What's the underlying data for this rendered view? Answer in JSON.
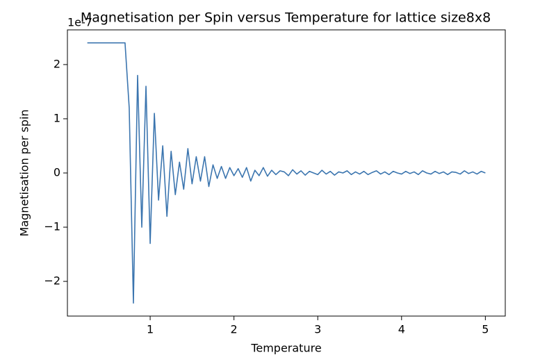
{
  "chart_data": {
    "type": "line",
    "title": "Magnetisation per Spin versus Temperature for lattice size8x8",
    "x_label": "Temperature",
    "y_label": "Magnetisation per spin",
    "y_offset_label": "1e-7",
    "x": [
      0.25,
      0.3,
      0.35,
      0.4,
      0.45,
      0.5,
      0.55,
      0.6,
      0.65,
      0.7,
      0.75,
      0.8,
      0.85,
      0.9,
      0.95,
      1.0,
      1.05,
      1.1,
      1.15,
      1.2,
      1.25,
      1.3,
      1.35,
      1.4,
      1.45,
      1.5,
      1.55,
      1.6,
      1.65,
      1.7,
      1.75,
      1.8,
      1.85,
      1.9,
      1.95,
      2.0,
      2.05,
      2.1,
      2.15,
      2.2,
      2.25,
      2.3,
      2.35,
      2.4,
      2.45,
      2.5,
      2.55,
      2.6,
      2.65,
      2.7,
      2.75,
      2.8,
      2.85,
      2.9,
      2.95,
      3.0,
      3.05,
      3.1,
      3.15,
      3.2,
      3.25,
      3.3,
      3.35,
      3.4,
      3.45,
      3.5,
      3.55,
      3.6,
      3.65,
      3.7,
      3.75,
      3.8,
      3.85,
      3.9,
      3.95,
      4.0,
      4.05,
      4.1,
      4.15,
      4.2,
      4.25,
      4.3,
      4.35,
      4.4,
      4.45,
      4.5,
      4.55,
      4.6,
      4.65,
      4.7,
      4.75,
      4.8,
      4.85,
      4.9,
      4.95,
      5.0
    ],
    "series": [
      {
        "color": "#3b75af",
        "values": [
          2.4,
          2.4,
          2.4,
          2.4,
          2.4,
          2.4,
          2.4,
          2.4,
          2.4,
          2.4,
          1.2,
          -2.4,
          1.8,
          -1.0,
          1.6,
          -1.3,
          1.1,
          -0.5,
          0.5,
          -0.8,
          0.4,
          -0.4,
          0.2,
          -0.3,
          0.45,
          -0.2,
          0.3,
          -0.15,
          0.3,
          -0.25,
          0.15,
          -0.1,
          0.12,
          -0.1,
          0.1,
          -0.05,
          0.08,
          -0.08,
          0.1,
          -0.15,
          0.05,
          -0.05,
          0.1,
          -0.06,
          0.05,
          -0.03,
          0.04,
          0.02,
          -0.05,
          0.06,
          -0.02,
          0.04,
          -0.04,
          0.03,
          0.0,
          -0.03,
          0.05,
          -0.02,
          0.03,
          -0.04,
          0.02,
          0.0,
          0.04,
          -0.03,
          0.02,
          -0.02,
          0.03,
          -0.03,
          0.01,
          0.04,
          -0.02,
          0.02,
          -0.03,
          0.03,
          0.0,
          -0.02,
          0.03,
          -0.01,
          0.02,
          -0.03,
          0.04,
          0.0,
          -0.02,
          0.03,
          -0.01,
          0.02,
          -0.03,
          0.02,
          0.01,
          -0.02,
          0.04,
          -0.01,
          0.02,
          -0.02,
          0.03,
          0.0
        ]
      }
    ],
    "xlim": [
      0.0125,
      5.2375
    ],
    "ylim": [
      -2.64,
      2.64
    ],
    "xticks": [
      1,
      2,
      3,
      4,
      5
    ],
    "yticks": [
      {
        "value": -2,
        "label": "−2"
      },
      {
        "value": -1,
        "label": "−1"
      },
      0,
      1,
      2
    ]
  }
}
